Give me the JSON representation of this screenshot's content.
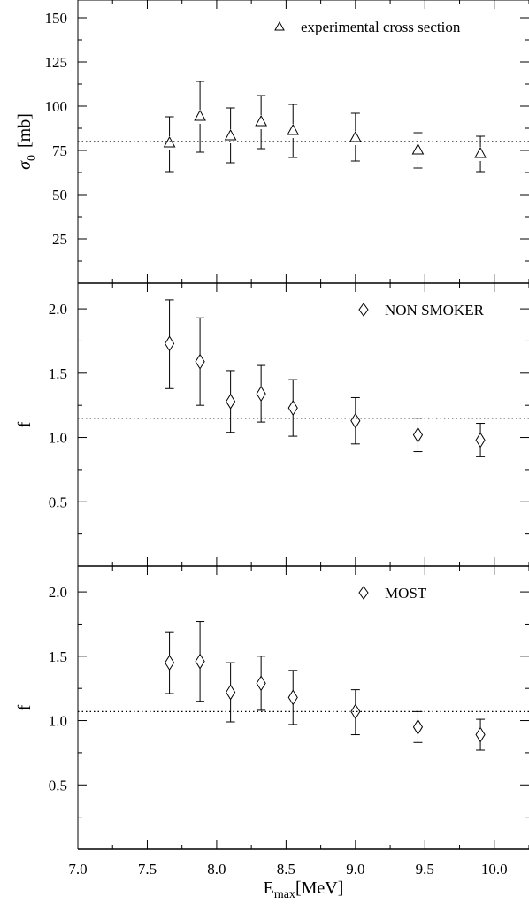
{
  "figure": {
    "xlabel_main": "E",
    "xlabel_sub": "max",
    "xlabel_unit": "[MeV]"
  },
  "chart_data": [
    {
      "type": "scatter",
      "ylabel_symbol": "σ",
      "ylabel_sub": "0",
      "ylabel_unit": "[mb]",
      "xlim": [
        7.0,
        10.25
      ],
      "ylim": [
        0,
        160
      ],
      "yticks": [
        25,
        50,
        75,
        100,
        125,
        150
      ],
      "ytick_labels": [
        "25",
        "50",
        "75",
        "100",
        "125",
        "150"
      ],
      "xticks": [
        7.0,
        7.5,
        8.0,
        8.5,
        9.0,
        9.5,
        10.0
      ],
      "xtick_labels": [],
      "reference_line": 80,
      "series": [
        {
          "name": "experimental cross section",
          "marker": "triangle",
          "x": [
            7.66,
            7.88,
            8.1,
            8.32,
            8.55,
            9.0,
            9.45,
            9.9
          ],
          "y": [
            79,
            94,
            83,
            91,
            86,
            82,
            75,
            73
          ],
          "err_low": [
            63,
            74,
            68,
            76,
            71,
            69,
            65,
            63
          ],
          "err_high": [
            94,
            114,
            99,
            106,
            101,
            96,
            85,
            83
          ]
        }
      ],
      "legend_position": "top-right"
    },
    {
      "type": "scatter",
      "ylabel": "f",
      "xlim": [
        7.0,
        10.25
      ],
      "ylim": [
        0,
        2.2
      ],
      "yticks": [
        0.5,
        1.0,
        1.5,
        2.0
      ],
      "ytick_labels": [
        "0.5",
        "1.0",
        "1.5",
        "2.0"
      ],
      "xticks": [
        7.0,
        7.5,
        8.0,
        8.5,
        9.0,
        9.5,
        10.0
      ],
      "xtick_labels": [],
      "reference_line": 1.15,
      "series": [
        {
          "name": "NON SMOKER",
          "marker": "diamond",
          "x": [
            7.66,
            7.88,
            8.1,
            8.32,
            8.55,
            9.0,
            9.45,
            9.9
          ],
          "y": [
            1.73,
            1.59,
            1.28,
            1.34,
            1.23,
            1.13,
            1.02,
            0.98
          ],
          "err_low": [
            1.38,
            1.25,
            1.04,
            1.12,
            1.01,
            0.95,
            0.89,
            0.85
          ],
          "err_high": [
            2.07,
            1.93,
            1.52,
            1.56,
            1.45,
            1.31,
            1.15,
            1.11
          ]
        }
      ],
      "legend_position": "top-right"
    },
    {
      "type": "scatter",
      "ylabel": "f",
      "xlim": [
        7.0,
        10.25
      ],
      "ylim": [
        0,
        2.2
      ],
      "yticks": [
        0.5,
        1.0,
        1.5,
        2.0
      ],
      "ytick_labels": [
        "0.5",
        "1.0",
        "1.5",
        "2.0"
      ],
      "xticks": [
        7.0,
        7.5,
        8.0,
        8.5,
        9.0,
        9.5,
        10.0
      ],
      "xtick_labels": [
        "7.0",
        "7.5",
        "8.0",
        "8.5",
        "9.0",
        "9.5",
        "10.0"
      ],
      "reference_line": 1.07,
      "series": [
        {
          "name": "MOST",
          "marker": "diamond",
          "x": [
            7.66,
            7.88,
            8.1,
            8.32,
            8.55,
            9.0,
            9.45,
            9.9
          ],
          "y": [
            1.45,
            1.46,
            1.22,
            1.29,
            1.18,
            1.07,
            0.95,
            0.89
          ],
          "err_low": [
            1.21,
            1.15,
            0.99,
            1.08,
            0.97,
            0.89,
            0.83,
            0.77
          ],
          "err_high": [
            1.69,
            1.77,
            1.45,
            1.5,
            1.39,
            1.24,
            1.07,
            1.01
          ]
        }
      ],
      "legend_position": "top-right"
    }
  ]
}
